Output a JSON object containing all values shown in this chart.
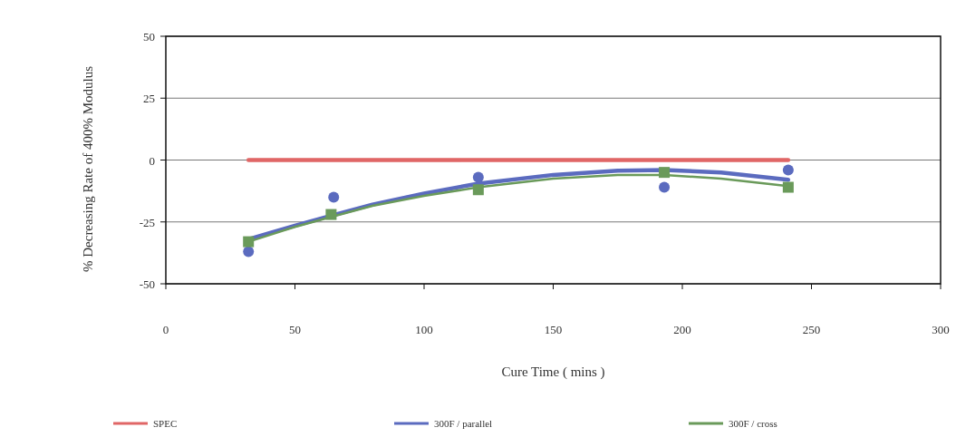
{
  "chart_data": {
    "type": "line",
    "xlabel": "Cure Time ( mins )",
    "ylabel": "% Decreasing Rate of 400% Modulus",
    "xlim": [
      0,
      300
    ],
    "xticks": [
      0,
      50,
      100,
      150,
      200,
      250,
      300
    ],
    "ylim": [
      -50,
      50
    ],
    "yticks": [
      -50,
      -25,
      0,
      25,
      50
    ],
    "grid": "y",
    "legend": "bottom",
    "marker": "none",
    "series": [
      {
        "name": "SPEC",
        "color": "#e06666",
        "x": [
          32,
          241
        ],
        "values": [
          0,
          0
        ]
      },
      {
        "name": "300F / parallel",
        "color": "#5b6bbf",
        "x": [
          32,
          50,
          64,
          80,
          100,
          121,
          150,
          175,
          193,
          215,
          241
        ],
        "values": [
          -32,
          -26.5,
          -22.5,
          -18,
          -13.5,
          -9.5,
          -6,
          -4.3,
          -4,
          -5,
          -8
        ]
      },
      {
        "name": "300F / cross",
        "color": "#6a9a5a",
        "x": [
          32,
          50,
          64,
          80,
          100,
          121,
          150,
          175,
          193,
          215,
          241
        ],
        "values": [
          -33,
          -27,
          -23,
          -18.5,
          -14.5,
          -11,
          -7.5,
          -6,
          -6,
          -7.5,
          -10.5
        ]
      },
      {
        "color": "#5b6bbf",
        "type": "scatter",
        "marker": "circle",
        "x": [
          32,
          65,
          121,
          193,
          241
        ],
        "values": [
          -37,
          -15,
          -7,
          -11,
          -4
        ]
      },
      {
        "color": "#6a9a5a",
        "type": "scatter",
        "marker": "square",
        "x": [
          32,
          64,
          121,
          193,
          241
        ],
        "values": [
          -33,
          -22,
          -12,
          -5,
          -11
        ]
      }
    ]
  }
}
